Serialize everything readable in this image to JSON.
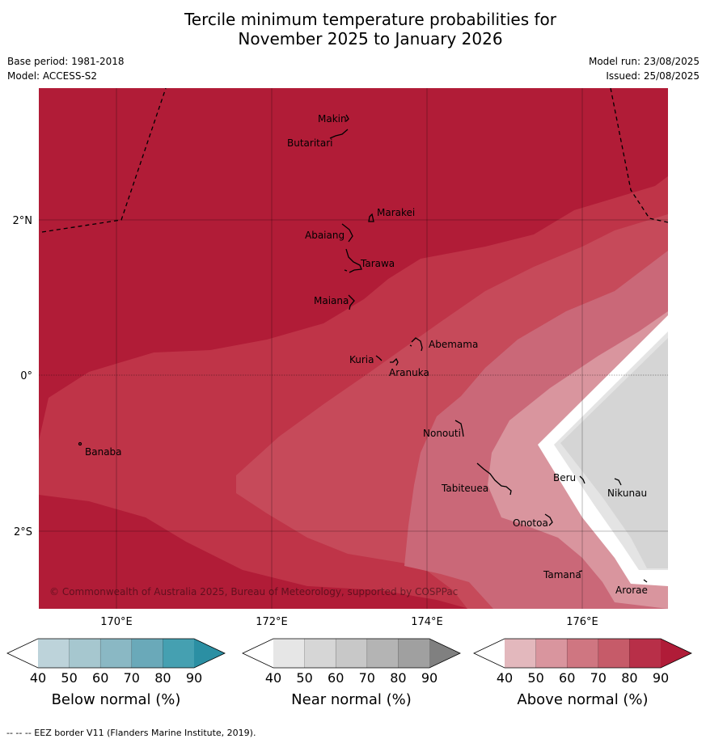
{
  "title_line1": "Tercile minimum temperature probabilities for",
  "title_line2": "November 2025 to January 2026",
  "base_period": "Base period: 1981-2018",
  "model": "Model: ACCESS-S2",
  "model_run": "Model run: 23/08/2025",
  "issued": "Issued: 25/08/2025",
  "copyright": "© Commonwealth of Australia 2025, Bureau of Meteorology, supported by COSPPac",
  "footnote": "--  --  -- EEZ border V11 (Flanders Marine Institute, 2019).",
  "lat_labels": [
    "2°N",
    "0°",
    "2°S"
  ],
  "lon_labels": [
    "170°E",
    "172°E",
    "174°E",
    "176°E"
  ],
  "places": [
    "Makin",
    "Butaritari",
    "Marakei",
    "Abaiang",
    "Tarawa",
    "Maiana",
    "Abemama",
    "Kuria",
    "Aranuka",
    "Banaba",
    "Nonouti",
    "Tabiteuea",
    "Beru",
    "Nikunau",
    "Onotoa",
    "Tamana",
    "Arorae"
  ],
  "colorbars": [
    {
      "title": "Below normal (%)",
      "ticks": [
        "40",
        "50",
        "60",
        "70",
        "80",
        "90"
      ],
      "colors": [
        "#ffffff",
        "#bdd3da",
        "#a6c7cf",
        "#8ab8c4",
        "#6aa9b9",
        "#45a0b1",
        "#2b8fa3"
      ]
    },
    {
      "title": "Near normal (%)",
      "ticks": [
        "40",
        "50",
        "60",
        "70",
        "80",
        "90"
      ],
      "colors": [
        "#ffffff",
        "#e6e6e6",
        "#d6d6d6",
        "#c8c8c8",
        "#b4b4b4",
        "#a0a0a0",
        "#808080"
      ]
    },
    {
      "title": "Above normal (%)",
      "ticks": [
        "40",
        "50",
        "60",
        "70",
        "80",
        "90"
      ],
      "colors": [
        "#ffffff",
        "#e3b8bd",
        "#d9959e",
        "#cf7681",
        "#c65b69",
        "#b82f48",
        "#b01c38"
      ]
    }
  ],
  "colors": {
    "above_80_90": "#b11c37",
    "above_70_80": "#bf3448",
    "above_60_70": "#c64a5a",
    "above_50_60": "#ca6878",
    "above_40_50": "#d9959e",
    "near_40_50": "#e4e4e4",
    "near_50_60": "#d5d5d5"
  }
}
